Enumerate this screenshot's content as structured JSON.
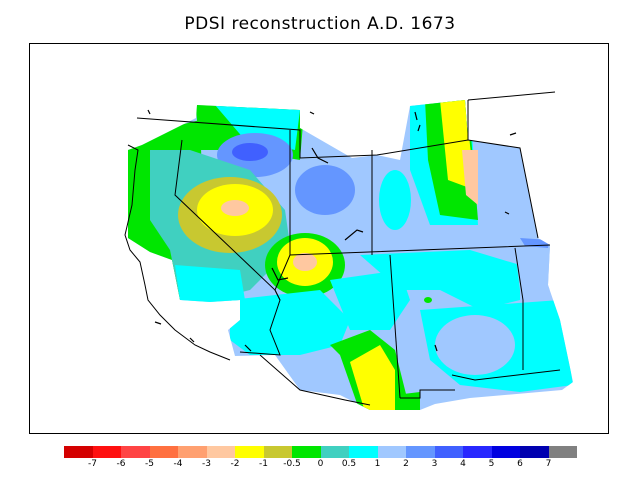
{
  "title": "PDSI reconstruction A.D. 1673",
  "legend": {
    "colors": [
      "#d40000",
      "#ff1010",
      "#ff4444",
      "#ff7040",
      "#ffa070",
      "#ffc8a0",
      "#ffff00",
      "#c8c830",
      "#00e600",
      "#40d0c0",
      "#00ffff",
      "#a0c8ff",
      "#6496ff",
      "#4060ff",
      "#2828ff",
      "#0000e0",
      "#0000b0",
      "#808080"
    ],
    "labels": [
      "-7",
      "-6",
      "-5",
      "-4",
      "-3",
      "-2",
      "-1",
      "-0.5",
      "0",
      "0.5",
      "1",
      "2",
      "3",
      "4",
      "5",
      "6",
      "7"
    ]
  },
  "map": {
    "region": "western-united-states",
    "variable": "PDSI",
    "year": 1673
  }
}
